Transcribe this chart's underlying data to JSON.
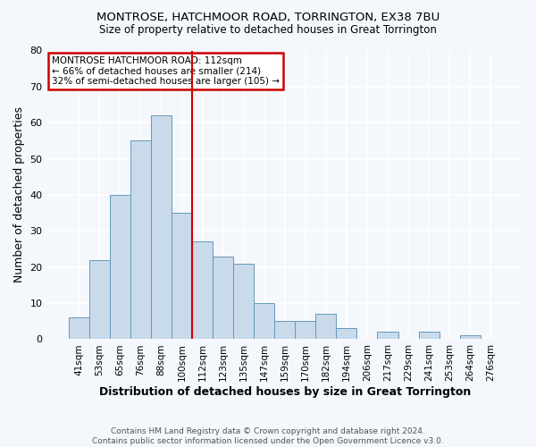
{
  "title": "MONTROSE, HATCHMOOR ROAD, TORRINGTON, EX38 7BU",
  "subtitle": "Size of property relative to detached houses in Great Torrington",
  "xlabel": "Distribution of detached houses by size in Great Torrington",
  "ylabel": "Number of detached properties",
  "bar_color": "#c9daea",
  "bar_edge_color": "#6699bb",
  "background_color": "#f4f7fb",
  "plot_bg_color": "#f4f7fb",
  "grid_color": "#ffffff",
  "categories": [
    "41sqm",
    "53sqm",
    "65sqm",
    "76sqm",
    "88sqm",
    "100sqm",
    "112sqm",
    "123sqm",
    "135sqm",
    "147sqm",
    "159sqm",
    "170sqm",
    "182sqm",
    "194sqm",
    "206sqm",
    "217sqm",
    "229sqm",
    "241sqm",
    "253sqm",
    "264sqm",
    "276sqm"
  ],
  "values": [
    6,
    22,
    40,
    55,
    62,
    35,
    27,
    23,
    21,
    10,
    5,
    5,
    7,
    3,
    0,
    2,
    0,
    2,
    0,
    1,
    0
  ],
  "ylim": [
    0,
    80
  ],
  "yticks": [
    0,
    10,
    20,
    30,
    40,
    50,
    60,
    70,
    80
  ],
  "vline_color": "#cc0000",
  "annotation_box_color": "#cc0000",
  "annotation_lines": [
    "MONTROSE HATCHMOOR ROAD: 112sqm",
    "← 66% of detached houses are smaller (214)",
    "32% of semi-detached houses are larger (105) →"
  ],
  "footer_lines": [
    "Contains HM Land Registry data © Crown copyright and database right 2024.",
    "Contains public sector information licensed under the Open Government Licence v3.0."
  ]
}
